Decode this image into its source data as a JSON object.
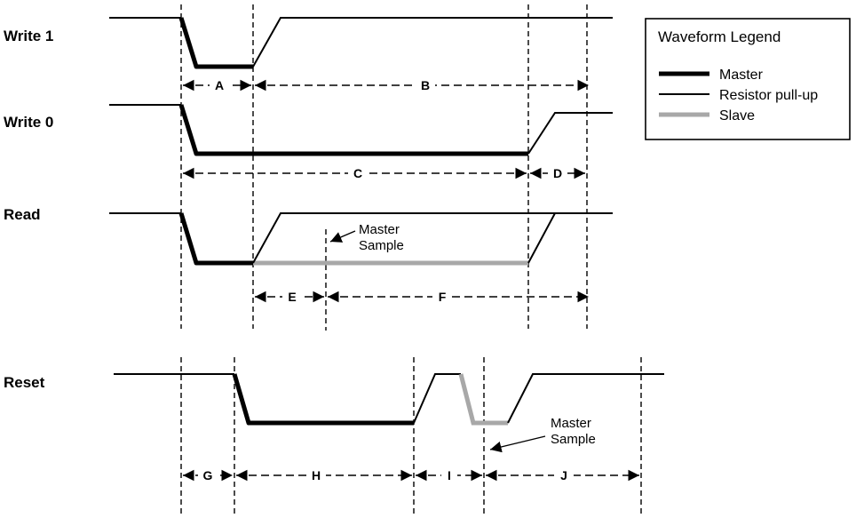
{
  "signals": {
    "write1": "Write 1",
    "write0": "Write 0",
    "read": "Read",
    "reset": "Reset"
  },
  "segments": {
    "a": "A",
    "b": "B",
    "c": "C",
    "d": "D",
    "e": "E",
    "f": "F",
    "g": "G",
    "h": "H",
    "i": "I",
    "j": "J"
  },
  "notes": {
    "master_sample_read": [
      "Master",
      "Sample"
    ],
    "master_sample_reset": [
      "Master",
      "Sample"
    ]
  },
  "legend": {
    "title": "Waveform Legend",
    "items": [
      {
        "label": "Master",
        "style": "thick",
        "color": "#000000"
      },
      {
        "label": "Resistor pull-up",
        "style": "thin",
        "color": "#000000"
      },
      {
        "label": "Slave",
        "style": "thick",
        "color": "#a8a8a8"
      }
    ]
  },
  "colors": {
    "line": "#000000",
    "slave": "#a8a8a8",
    "background": "#ffffff"
  }
}
